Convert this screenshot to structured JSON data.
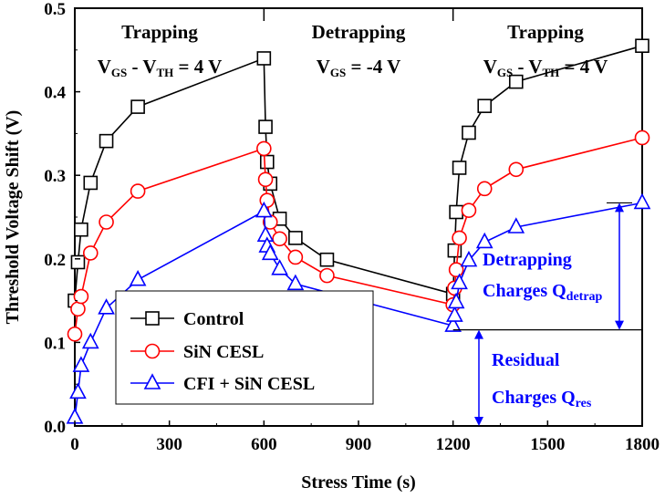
{
  "chart_data": {
    "type": "line",
    "xlabel": "Stress Time (s)",
    "ylabel": "Threshold Voltage Shift (V)",
    "xlim": [
      0,
      1800
    ],
    "ylim": [
      0,
      0.5
    ],
    "xticks": [
      0,
      300,
      600,
      900,
      1200,
      1500,
      1800
    ],
    "xtick_labels": [
      "0",
      "300",
      "600",
      "900",
      "1200",
      "1500",
      "1800"
    ],
    "yticks": [
      0.0,
      0.1,
      0.2,
      0.3,
      0.4,
      0.5
    ],
    "ytick_labels": [
      "0.0",
      "0.1",
      "0.2",
      "0.3",
      "0.4",
      "0.5"
    ],
    "grid": false,
    "legend_position": "lower-left",
    "series": [
      {
        "name": "Control",
        "color": "#000000",
        "marker": "square",
        "x": [
          0,
          10,
          20,
          50,
          100,
          200,
          600,
          605,
          610,
          620,
          650,
          700,
          800,
          1200,
          1205,
          1210,
          1220,
          1250,
          1300,
          1400,
          1800
        ],
        "y": [
          0.15,
          0.196,
          0.235,
          0.291,
          0.341,
          0.382,
          0.44,
          0.358,
          0.316,
          0.29,
          0.248,
          0.225,
          0.199,
          0.158,
          0.21,
          0.256,
          0.309,
          0.351,
          0.383,
          0.412,
          0.455
        ]
      },
      {
        "name": "SiN CESL",
        "color": "#ff0000",
        "marker": "circle",
        "x": [
          0,
          10,
          20,
          50,
          100,
          200,
          600,
          605,
          610,
          620,
          650,
          700,
          800,
          1200,
          1205,
          1210,
          1220,
          1250,
          1300,
          1400,
          1800
        ],
        "y": [
          0.11,
          0.14,
          0.155,
          0.207,
          0.244,
          0.281,
          0.332,
          0.295,
          0.27,
          0.244,
          0.224,
          0.202,
          0.18,
          0.145,
          0.165,
          0.187,
          0.225,
          0.258,
          0.284,
          0.307,
          0.345
        ]
      },
      {
        "name": "CFI + SiN CESL",
        "color": "#0000ff",
        "marker": "triangle",
        "x": [
          0,
          10,
          20,
          50,
          100,
          200,
          600,
          605,
          610,
          620,
          650,
          700,
          1200,
          1205,
          1210,
          1220,
          1250,
          1300,
          1400,
          1800
        ],
        "y": [
          0.01,
          0.04,
          0.072,
          0.1,
          0.141,
          0.175,
          0.257,
          0.228,
          0.215,
          0.206,
          0.188,
          0.17,
          0.12,
          0.132,
          0.148,
          0.171,
          0.198,
          0.22,
          0.238,
          0.267
        ]
      }
    ],
    "phases": [
      {
        "title": "Trapping",
        "condition": "V_GS - V_TH = 4 V"
      },
      {
        "title": "Detrapping",
        "condition": "V_GS = -4 V"
      },
      {
        "title": "Trapping",
        "condition": "V_GS - V_TH = 4 V"
      }
    ],
    "phase_boundaries": [
      600,
      1200
    ],
    "annotations": {
      "detrapping": {
        "line1": "Detrapping",
        "line2": "Charges Q",
        "sub": "detrap",
        "from": 0.115,
        "to": 0.267
      },
      "residual": {
        "line1": "Residual",
        "line2": "Charges Q",
        "sub": "res",
        "from": 0.0,
        "to": 0.115
      },
      "reference_level": 0.115
    }
  }
}
